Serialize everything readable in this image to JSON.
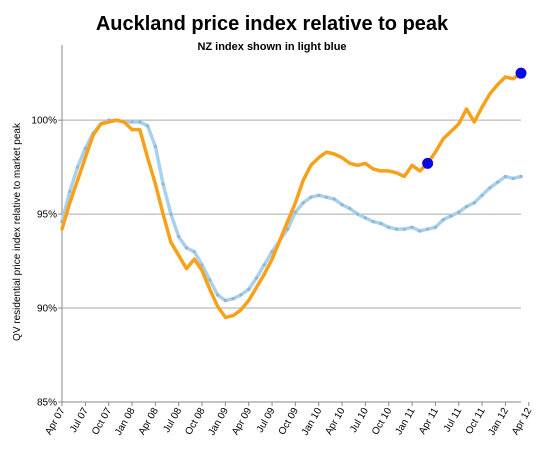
{
  "chart_data": {
    "type": "line",
    "title": "Auckland price index relative to peak",
    "subtitle": "NZ index shown in light blue",
    "xlabel": "",
    "ylabel": "QV residential price index relative to market peak",
    "ylim": [
      85,
      104
    ],
    "yticks": [
      85,
      90,
      95,
      100
    ],
    "ytick_labels": [
      "85%",
      "90%",
      "95%",
      "100%"
    ],
    "grid": "horizontal",
    "legend": "none",
    "x_tick_labels": [
      "Apr 07",
      "Jul 07",
      "Oct 07",
      "Jan 08",
      "Apr 08",
      "Jul 08",
      "Oct 08",
      "Jan 09",
      "Apr 09",
      "Jul 09",
      "Oct 09",
      "Jan 10",
      "Apr 10",
      "Jul 10",
      "Oct 10",
      "Jan 11",
      "Apr 11",
      "Jul 11",
      "Oct 11",
      "Jan 12",
      "Apr 12"
    ],
    "colors": {
      "auckland": "#f7a11a",
      "nz": "#a9d1ec",
      "marker": "#0a0ae0",
      "grid": "#aaaaaa"
    },
    "series": [
      {
        "key": "auckland",
        "values": [
          94.2,
          95.6,
          96.8,
          98.0,
          99.2,
          99.8,
          99.9,
          100.0,
          99.9,
          99.5,
          99.5,
          98.0,
          96.6,
          95.0,
          93.5,
          92.8,
          92.1,
          92.6,
          92.0,
          91.0,
          90.1,
          89.5,
          89.6,
          89.9,
          90.4,
          91.1,
          91.8,
          92.6,
          93.6,
          94.6,
          95.6,
          96.8,
          97.6,
          98.0,
          98.3,
          98.2,
          98.0,
          97.7,
          97.6,
          97.7,
          97.4,
          97.3,
          97.3,
          97.2,
          97.0,
          97.6,
          97.3,
          97.7,
          98.3,
          99.0,
          99.4,
          99.8,
          100.6,
          99.9,
          100.7,
          101.4,
          101.9,
          102.3,
          102.2,
          102.5
        ]
      },
      {
        "key": "nz",
        "values": [
          94.6,
          96.2,
          97.5,
          98.5,
          99.3,
          99.8,
          100.0,
          100.0,
          99.9,
          99.9,
          99.9,
          99.7,
          98.6,
          96.6,
          95.0,
          93.8,
          93.2,
          93.0,
          92.3,
          91.5,
          90.7,
          90.4,
          90.5,
          90.7,
          91.0,
          91.6,
          92.3,
          93.0,
          93.6,
          94.2,
          95.1,
          95.6,
          95.9,
          96.0,
          95.9,
          95.8,
          95.5,
          95.3,
          95.0,
          94.8,
          94.6,
          94.5,
          94.3,
          94.2,
          94.2,
          94.3,
          94.1,
          94.2,
          94.3,
          94.7,
          94.9,
          95.1,
          95.4,
          95.6,
          96.0,
          96.4,
          96.7,
          97.0,
          96.9,
          97.0
        ]
      }
    ],
    "highlighted_points": [
      {
        "series": "auckland",
        "index": 47
      },
      {
        "series": "auckland",
        "index": 59
      }
    ]
  }
}
